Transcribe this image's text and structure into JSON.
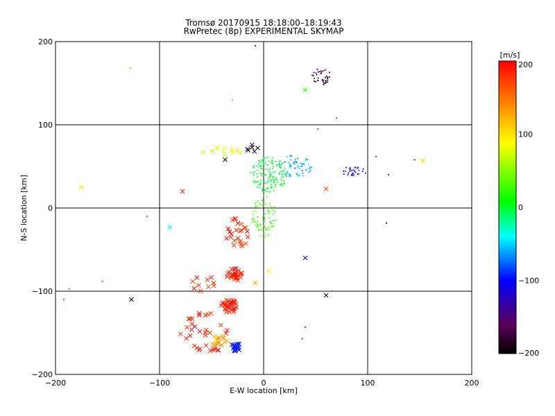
{
  "chart_data": {
    "type": "scatter",
    "title": "Tromsø 20170915 18:18:00–18:19:43",
    "subtitle": "RwPretec (8p) EXPERIMENTAL SKYMAP",
    "xlabel": "E-W location [km]",
    "ylabel": "N-S location [km]",
    "xlim": [
      -200,
      200
    ],
    "ylim": [
      -200,
      200
    ],
    "xticks": [
      -200,
      -100,
      0,
      100,
      200
    ],
    "yticks": [
      -200,
      -100,
      0,
      100,
      200
    ],
    "grid": true,
    "colorbar": {
      "label": "[m/s]",
      "range": [
        -200,
        200
      ],
      "ticks": [
        200,
        100,
        0,
        -100,
        -200
      ],
      "colormap": [
        "#000000",
        "#5a005a",
        "#0000ff",
        "#00ffff",
        "#00ff00",
        "#ffff00",
        "#ff8000",
        "#ff0000"
      ]
    },
    "clusters": [
      {
        "cx": 55,
        "cy": 158,
        "rx": 10,
        "ry": 10,
        "v": -175,
        "n": 40,
        "marker": "dot"
      },
      {
        "cx": 88,
        "cy": 44,
        "rx": 14,
        "ry": 6,
        "v": -120,
        "n": 30,
        "marker": "dot"
      },
      {
        "cx": 30,
        "cy": 50,
        "rx": 18,
        "ry": 14,
        "v": -60,
        "n": 70,
        "marker": "dot"
      },
      {
        "cx": 5,
        "cy": 40,
        "rx": 18,
        "ry": 22,
        "v": 0,
        "n": 140,
        "marker": "dot"
      },
      {
        "cx": 0,
        "cy": -10,
        "rx": 12,
        "ry": 25,
        "v": 30,
        "n": 70,
        "marker": "dot"
      },
      {
        "cx": -10,
        "cy": 72,
        "rx": 6,
        "ry": 5,
        "v": -180,
        "n": 6,
        "marker": "x"
      },
      {
        "cx": -40,
        "cy": 68,
        "rx": 20,
        "ry": 5,
        "v": 80,
        "n": 10,
        "marker": "x"
      },
      {
        "cx": -25,
        "cy": -30,
        "rx": 12,
        "ry": 18,
        "v": 185,
        "n": 25,
        "marker": "x"
      },
      {
        "cx": -28,
        "cy": -80,
        "rx": 8,
        "ry": 8,
        "v": 190,
        "n": 30,
        "marker": "x"
      },
      {
        "cx": -33,
        "cy": -118,
        "rx": 8,
        "ry": 8,
        "v": 190,
        "n": 35,
        "marker": "x"
      },
      {
        "cx": -55,
        "cy": -150,
        "rx": 25,
        "ry": 25,
        "v": 185,
        "n": 35,
        "marker": "x"
      },
      {
        "cx": -42,
        "cy": -160,
        "rx": 8,
        "ry": 8,
        "v": 130,
        "n": 15,
        "marker": "x"
      },
      {
        "cx": -27,
        "cy": -167,
        "rx": 5,
        "ry": 5,
        "v": -100,
        "n": 25,
        "marker": "x"
      },
      {
        "cx": -60,
        "cy": -90,
        "rx": 15,
        "ry": 10,
        "v": 185,
        "n": 10,
        "marker": "x"
      }
    ],
    "points": [
      {
        "x": -128,
        "y": 168,
        "v": 20,
        "marker": "dot"
      },
      {
        "x": -175,
        "y": 25,
        "v": 100,
        "marker": "x"
      },
      {
        "x": -90,
        "y": -23,
        "v": -40,
        "marker": "x"
      },
      {
        "x": -78,
        "y": 20,
        "v": 190,
        "marker": "x"
      },
      {
        "x": -127,
        "y": -110,
        "v": -200,
        "marker": "x"
      },
      {
        "x": -192,
        "y": -110,
        "v": 190,
        "marker": "dot"
      },
      {
        "x": -187,
        "y": -97,
        "v": 190,
        "marker": "dot"
      },
      {
        "x": -155,
        "y": -88,
        "v": 190,
        "marker": "dot"
      },
      {
        "x": -112,
        "y": -10,
        "v": 190,
        "marker": "dot"
      },
      {
        "x": -37,
        "y": 58,
        "v": -200,
        "marker": "x"
      },
      {
        "x": 60,
        "y": -105,
        "v": -200,
        "marker": "x"
      },
      {
        "x": 40,
        "y": -60,
        "v": -120,
        "marker": "x"
      },
      {
        "x": 153,
        "y": 57,
        "v": 110,
        "marker": "x"
      },
      {
        "x": 145,
        "y": 58,
        "v": -180,
        "marker": "dot"
      },
      {
        "x": 60,
        "y": 23,
        "v": 170,
        "marker": "x"
      },
      {
        "x": 40,
        "y": 142,
        "v": 20,
        "marker": "x"
      },
      {
        "x": 118,
        "y": -18,
        "v": -200,
        "marker": "dot"
      },
      {
        "x": 5,
        "y": -76,
        "v": 100,
        "marker": "x"
      },
      {
        "x": -8,
        "y": -90,
        "v": 130,
        "marker": "x"
      },
      {
        "x": -8,
        "y": 195,
        "v": -100,
        "marker": "dot"
      },
      {
        "x": -30,
        "y": 130,
        "v": 20,
        "marker": "dot"
      },
      {
        "x": 40,
        "y": -143,
        "v": -120,
        "marker": "dot"
      },
      {
        "x": 37,
        "y": -157,
        "v": -120,
        "marker": "dot"
      },
      {
        "x": 108,
        "y": 62,
        "v": -150,
        "marker": "dot"
      },
      {
        "x": 120,
        "y": 40,
        "v": -120,
        "marker": "dot"
      },
      {
        "x": 70,
        "y": 108,
        "v": 190,
        "marker": "dot"
      },
      {
        "x": 52,
        "y": 95,
        "v": 190,
        "marker": "dot"
      }
    ]
  }
}
